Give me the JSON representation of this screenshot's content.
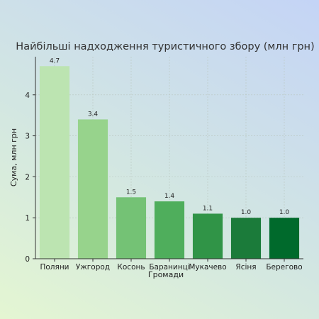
{
  "chart_data": {
    "type": "bar",
    "title": "Найбільші надходження туристичного збору (млн грн)",
    "xlabel": "Громади",
    "ylabel": "Сума, млн грн",
    "categories": [
      "Поляни",
      "Ужгород",
      "Косонь",
      "Баранинці",
      "Мукачево",
      "Ясіня",
      "Берегово"
    ],
    "values": [
      4.7,
      3.4,
      1.5,
      1.4,
      1.1,
      1.0,
      1.0
    ],
    "value_labels": [
      "4.7",
      "3.4",
      "1.5",
      "1.4",
      "1.1",
      "1.0",
      "1.0"
    ],
    "bar_colors": [
      "#bce4b1",
      "#97d38c",
      "#74c275",
      "#4fae5c",
      "#309447",
      "#1b7b3a",
      "#006a2c"
    ],
    "yticks": [
      0,
      1,
      2,
      3,
      4
    ],
    "ylim": [
      0,
      4.93
    ],
    "grid": true,
    "legend": "none"
  }
}
